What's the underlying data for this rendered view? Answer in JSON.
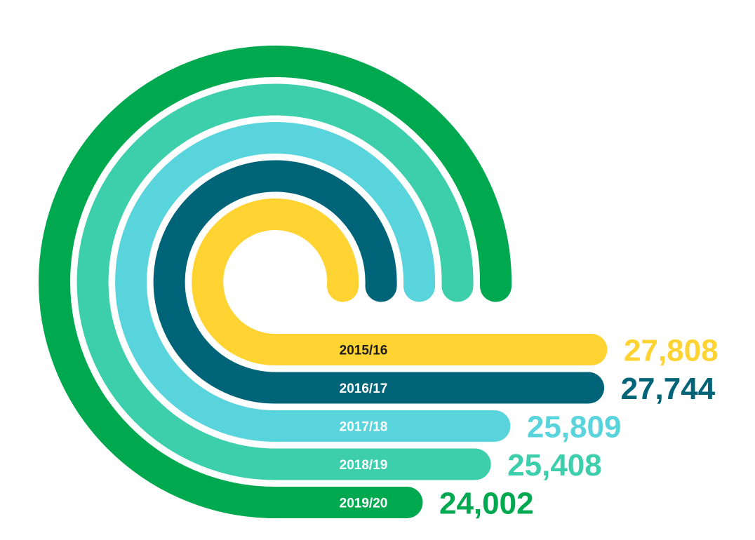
{
  "chart_data": {
    "type": "bar",
    "title": "",
    "xlabel": "",
    "ylabel": "",
    "categories": [
      "2015/16",
      "2016/17",
      "2017/18",
      "2018/19",
      "2019/20"
    ],
    "values": [
      27808,
      27744,
      25809,
      25408,
      24002
    ],
    "value_labels": [
      "27,808",
      "27,744",
      "25,809",
      "25,408",
      "24,002"
    ],
    "colors": [
      "#FFD332",
      "#006479",
      "#5AD4DC",
      "#3DCFAC",
      "#00A94F"
    ],
    "category_label_colors": [
      "#1a1a1a",
      "#ffffff",
      "#ffffff",
      "#ffffff",
      "#ffffff"
    ],
    "grid": false,
    "legend": "none"
  }
}
